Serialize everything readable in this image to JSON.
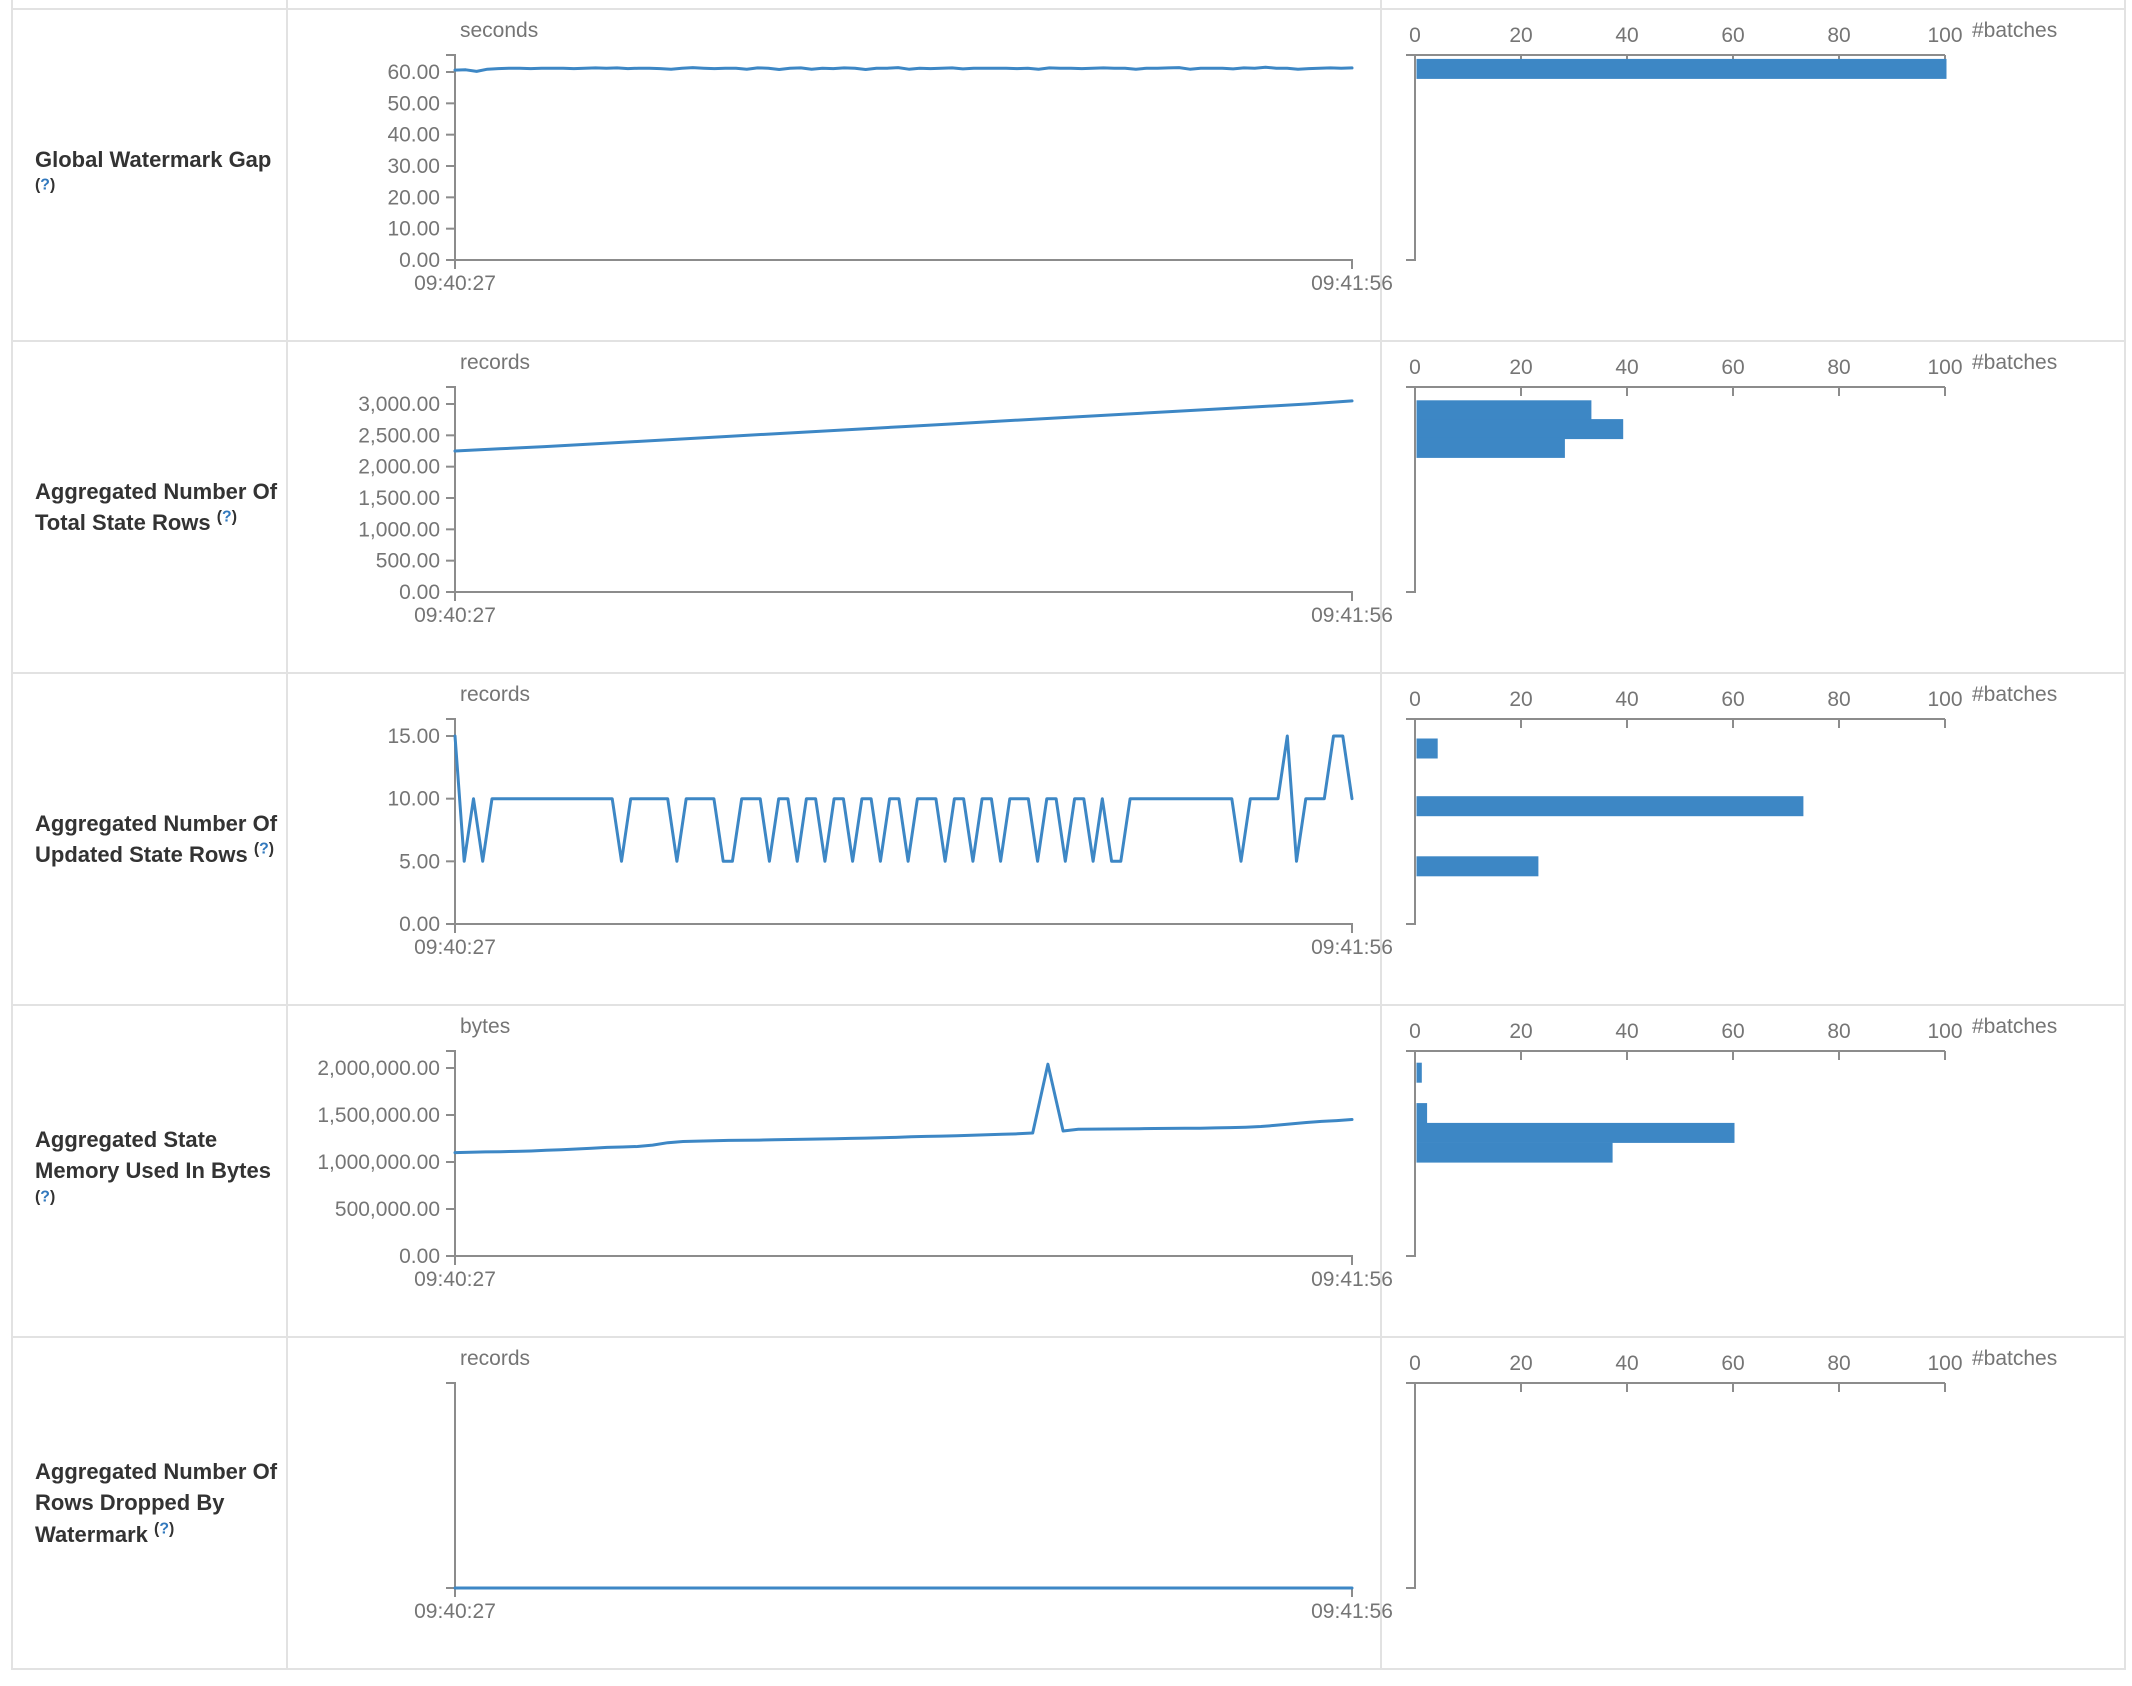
{
  "colors": {
    "accent": "#3d87c5",
    "axis": "#8c8c8c",
    "tick_text": "#757575",
    "metric_text": "#333333",
    "help_blue": "#3178bd",
    "border": "#e2e2e2"
  },
  "help": {
    "open": "(",
    "q": "?",
    "close": ")"
  },
  "histogram_axis": {
    "ticks": [
      "0",
      "20",
      "40",
      "60",
      "80",
      "100"
    ],
    "max": 100,
    "label": "#batches"
  },
  "chart_data": [
    {
      "type": "line",
      "name": "Global Watermark Gap",
      "timeline": {
        "unit": "seconds",
        "y_ticks": [
          "60.00",
          "50.00",
          "40.00",
          "30.00",
          "20.00",
          "10.00",
          "0.00"
        ],
        "y_max": 60,
        "x_start": "09:40:27",
        "x_end": "09:41:56",
        "values": [
          60.6,
          60.7,
          60.2,
          60.9,
          61.1,
          61.2,
          61.2,
          61.1,
          61.2,
          61.2,
          61.2,
          61.1,
          61.2,
          61.3,
          61.2,
          61.3,
          61.1,
          61.2,
          61.2,
          61.1,
          60.9,
          61.2,
          61.4,
          61.2,
          61.1,
          61.2,
          61.2,
          60.9,
          61.3,
          61.2,
          60.8,
          61.2,
          61.3,
          60.9,
          61.2,
          61.1,
          61.3,
          61.2,
          60.8,
          61.2,
          61.2,
          61.4,
          60.9,
          61.2,
          61.1,
          61.2,
          61.3,
          61.0,
          61.2,
          61.2,
          61.2,
          61.2,
          61.1,
          61.2,
          60.9,
          61.3,
          61.2,
          61.2,
          61.1,
          61.2,
          61.3,
          61.2,
          61.2,
          60.9,
          61.2,
          61.2,
          61.3,
          61.4,
          60.9,
          61.2,
          61.2,
          61.2,
          61.0,
          61.3,
          61.2,
          61.5,
          61.2,
          61.2,
          60.9,
          61.1,
          61.2,
          61.3,
          61.2,
          61.3
        ]
      },
      "histogram": {
        "bars": [
          {
            "value": 61,
            "count": 100
          }
        ]
      }
    },
    {
      "type": "line",
      "name": "Aggregated Number Of Total State Rows",
      "timeline": {
        "unit": "records",
        "y_ticks": [
          "3,000.00",
          "2,500.00",
          "2,000.00",
          "1,500.00",
          "1,000.00",
          "500.00",
          "0.00"
        ],
        "y_max": 3000,
        "x_start": "09:40:27",
        "x_end": "09:41:56",
        "values": [
          2250,
          2285,
          2320,
          2360,
          2400,
          2440,
          2480,
          2520,
          2560,
          2600,
          2640,
          2680,
          2720,
          2760,
          2800,
          2840,
          2880,
          2920,
          2960,
          3000,
          3050
        ]
      },
      "histogram": {
        "bars": [
          {
            "value": 2900,
            "count": 33
          },
          {
            "value": 2600,
            "count": 39
          },
          {
            "value": 2300,
            "count": 28
          }
        ]
      }
    },
    {
      "type": "line",
      "name": "Aggregated Number Of Updated State Rows",
      "timeline": {
        "unit": "records",
        "y_ticks": [
          "15.00",
          "10.00",
          "5.00",
          "0.00"
        ],
        "y_max": 15,
        "x_start": "09:40:27",
        "x_end": "09:41:56",
        "values": [
          15,
          5,
          10,
          5,
          10,
          10,
          10,
          10,
          10,
          10,
          10,
          10,
          10,
          10,
          10,
          10,
          10,
          10,
          5,
          10,
          10,
          10,
          10,
          10,
          5,
          10,
          10,
          10,
          10,
          5,
          5,
          10,
          10,
          10,
          5,
          10,
          10,
          5,
          10,
          10,
          5,
          10,
          10,
          5,
          10,
          10,
          5,
          10,
          10,
          5,
          10,
          10,
          10,
          5,
          10,
          10,
          5,
          10,
          10,
          5,
          10,
          10,
          10,
          5,
          10,
          10,
          5,
          10,
          10,
          5,
          10,
          5,
          5,
          10,
          10,
          10,
          10,
          10,
          10,
          10,
          10,
          10,
          10,
          10,
          10,
          5,
          10,
          10,
          10,
          10,
          15,
          5,
          10,
          10,
          10,
          15,
          15,
          10
        ]
      },
      "histogram": {
        "bars": [
          {
            "value": 14,
            "count": 4
          },
          {
            "value": 9.4,
            "count": 73
          },
          {
            "value": 4.6,
            "count": 23
          }
        ]
      }
    },
    {
      "type": "line",
      "name": "Aggregated State Memory Used In Bytes",
      "timeline": {
        "unit": "bytes",
        "y_ticks": [
          "2,000,000.00",
          "1,500,000.00",
          "1,000,000.00",
          "500,000.00",
          "0.00"
        ],
        "y_max": 2000000,
        "x_start": "09:40:27",
        "x_end": "09:41:56",
        "values": [
          1100000,
          1103000,
          1107000,
          1110000,
          1113000,
          1117000,
          1125000,
          1130000,
          1138000,
          1146000,
          1155000,
          1160000,
          1165000,
          1180000,
          1205000,
          1218000,
          1222000,
          1226000,
          1230000,
          1231000,
          1233000,
          1236000,
          1239000,
          1242000,
          1245000,
          1248000,
          1251000,
          1254000,
          1258000,
          1262000,
          1268000,
          1272000,
          1276000,
          1280000,
          1285000,
          1290000,
          1295000,
          1300000,
          1308000,
          2040000,
          1330000,
          1348000,
          1350000,
          1351000,
          1352000,
          1354000,
          1356000,
          1357000,
          1358000,
          1360000,
          1363000,
          1366000,
          1370000,
          1378000,
          1390000,
          1405000,
          1420000,
          1432000,
          1440000,
          1452000
        ]
      },
      "histogram": {
        "bars": [
          {
            "value": 1950000,
            "count": 1
          },
          {
            "value": 1520000,
            "count": 2
          },
          {
            "value": 1310000,
            "count": 60
          },
          {
            "value": 1100000,
            "count": 37
          }
        ]
      }
    },
    {
      "type": "line",
      "name": "Aggregated Number Of Rows Dropped By Watermark",
      "timeline": {
        "unit": "records",
        "y_ticks": [],
        "y_max": 1,
        "x_start": "09:40:27",
        "x_end": "09:41:56",
        "values": [
          0,
          0,
          0,
          0,
          0
        ]
      },
      "histogram": {
        "bars": []
      }
    }
  ]
}
